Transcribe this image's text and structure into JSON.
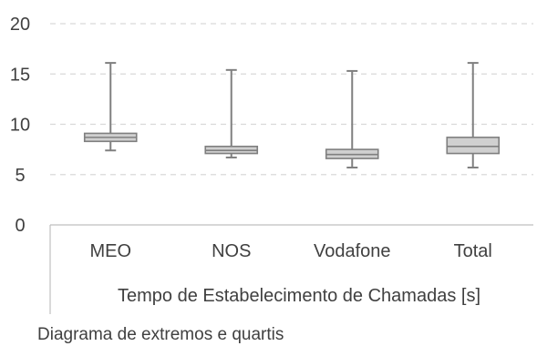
{
  "caption": "Diagrama de extremos e quartis",
  "colors": {
    "box_fill": "#d0d0d0",
    "box_stroke": "#7f7f7f",
    "whisker": "#808080",
    "grid": "#d9d9d9",
    "axis": "#bfbfbf",
    "text": "#404040"
  },
  "chart_data": {
    "type": "box",
    "title": "",
    "xlabel": "Tempo de Estabelecimento de Chamadas [s]",
    "ylabel": "",
    "ylim": [
      0,
      20
    ],
    "yticks": [
      0,
      5,
      10,
      15,
      20
    ],
    "grid": true,
    "categories": [
      "MEO",
      "NOS",
      "Vodafone",
      "Total"
    ],
    "boxes": [
      {
        "category": "MEO",
        "min": 7.4,
        "q1": 8.3,
        "median": 8.7,
        "q3": 9.1,
        "max": 16.1
      },
      {
        "category": "NOS",
        "min": 6.7,
        "q1": 7.1,
        "median": 7.4,
        "q3": 7.8,
        "max": 15.4
      },
      {
        "category": "Vodafone",
        "min": 5.7,
        "q1": 6.6,
        "median": 7.0,
        "q3": 7.5,
        "max": 15.3
      },
      {
        "category": "Total",
        "min": 5.7,
        "q1": 7.1,
        "median": 7.8,
        "q3": 8.7,
        "max": 16.1
      }
    ]
  }
}
